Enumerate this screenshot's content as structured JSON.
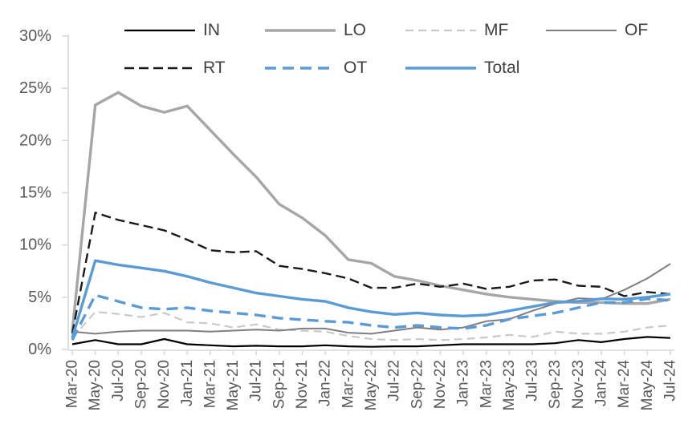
{
  "chart_data": {
    "type": "line",
    "title": "",
    "legend_position": "top",
    "grid": false,
    "categories": [
      "Mar-20",
      "May-20",
      "Jul-20",
      "Sep-20",
      "Nov-20",
      "Jan-21",
      "Mar-21",
      "May-21",
      "Jul-21",
      "Sep-21",
      "Nov-21",
      "Jan-22",
      "Mar-22",
      "May-22",
      "Jul-22",
      "Sep-22",
      "Nov-22",
      "Jan-23",
      "Mar-23",
      "May-23",
      "Jul-23",
      "Sep-23",
      "Nov-23",
      "Jan-24",
      "Mar-24",
      "May-24",
      "Jul-24"
    ],
    "y_axis": {
      "min": 0,
      "max": 30,
      "step": 5,
      "tick_labels": [
        "0%",
        "5%",
        "10%",
        "15%",
        "20%",
        "25%",
        "30%"
      ]
    },
    "series": [
      {
        "name": "IN",
        "color": "#000000",
        "dash": "",
        "width": 2.2,
        "values": [
          0.5,
          0.9,
          0.5,
          0.5,
          1.0,
          0.5,
          0.4,
          0.3,
          0.35,
          0.3,
          0.3,
          0.4,
          0.3,
          0.25,
          0.3,
          0.3,
          0.4,
          0.5,
          0.5,
          0.5,
          0.5,
          0.6,
          0.9,
          0.7,
          1.0,
          1.2,
          1.1
        ]
      },
      {
        "name": "LO",
        "color": "#a6a6a6",
        "dash": "",
        "width": 3.4,
        "values": [
          1.7,
          23.4,
          24.6,
          23.3,
          22.7,
          23.3,
          21.0,
          18.7,
          16.5,
          13.9,
          12.6,
          10.9,
          8.6,
          8.25,
          7.0,
          6.6,
          6.1,
          5.7,
          5.3,
          5.0,
          4.8,
          4.6,
          4.5,
          4.5,
          4.4,
          4.4,
          4.8
        ]
      },
      {
        "name": "MF",
        "color": "#c9c9c9",
        "dash": "10 6",
        "width": 2.2,
        "values": [
          1.1,
          3.6,
          3.4,
          3.1,
          3.5,
          2.6,
          2.5,
          2.1,
          2.4,
          1.9,
          1.8,
          1.7,
          1.3,
          1.0,
          0.9,
          1.0,
          0.9,
          1.0,
          1.15,
          1.4,
          1.2,
          1.7,
          1.5,
          1.5,
          1.7,
          2.1,
          2.3
        ]
      },
      {
        "name": "OF",
        "color": "#7f7f7f",
        "dash": "",
        "width": 2.0,
        "values": [
          1.7,
          1.5,
          1.7,
          1.8,
          1.8,
          1.8,
          1.7,
          1.8,
          1.9,
          1.8,
          2.0,
          2.0,
          1.6,
          1.5,
          1.8,
          2.1,
          1.9,
          2.1,
          2.7,
          2.9,
          3.7,
          4.4,
          4.9,
          4.8,
          5.7,
          6.8,
          8.2
        ]
      },
      {
        "name": "RT",
        "color": "#1a1a1a",
        "dash": "12 6",
        "width": 2.4,
        "values": [
          1.5,
          13.1,
          12.4,
          11.9,
          11.4,
          10.5,
          9.5,
          9.3,
          9.4,
          8.0,
          7.7,
          7.3,
          6.8,
          5.9,
          5.9,
          6.3,
          6.0,
          6.3,
          5.8,
          6.0,
          6.6,
          6.7,
          6.1,
          6.0,
          5.1,
          5.5,
          5.3
        ]
      },
      {
        "name": "OT",
        "color": "#5b9bd5",
        "dash": "14 8",
        "width": 3.4,
        "values": [
          0.9,
          5.2,
          4.6,
          4.0,
          3.85,
          4.0,
          3.7,
          3.5,
          3.3,
          3.0,
          2.85,
          2.7,
          2.6,
          2.3,
          2.1,
          2.3,
          2.1,
          2.0,
          2.3,
          2.9,
          3.2,
          3.5,
          4.0,
          4.5,
          4.5,
          4.85,
          4.7
        ]
      },
      {
        "name": "Total",
        "color": "#5b9bd5",
        "dash": "",
        "width": 3.4,
        "values": [
          1.1,
          8.5,
          8.1,
          7.8,
          7.5,
          7.0,
          6.4,
          5.9,
          5.4,
          5.1,
          4.8,
          4.6,
          4.0,
          3.6,
          3.35,
          3.5,
          3.3,
          3.2,
          3.3,
          3.7,
          4.1,
          4.5,
          4.6,
          4.85,
          4.8,
          5.0,
          5.3
        ]
      }
    ]
  },
  "style": {
    "background": "#ffffff",
    "axis_color": "#d9d9d9",
    "tick_label_color": "#595959",
    "legend_text_color": "#404040",
    "accent_blue": "#5b9bd5"
  }
}
